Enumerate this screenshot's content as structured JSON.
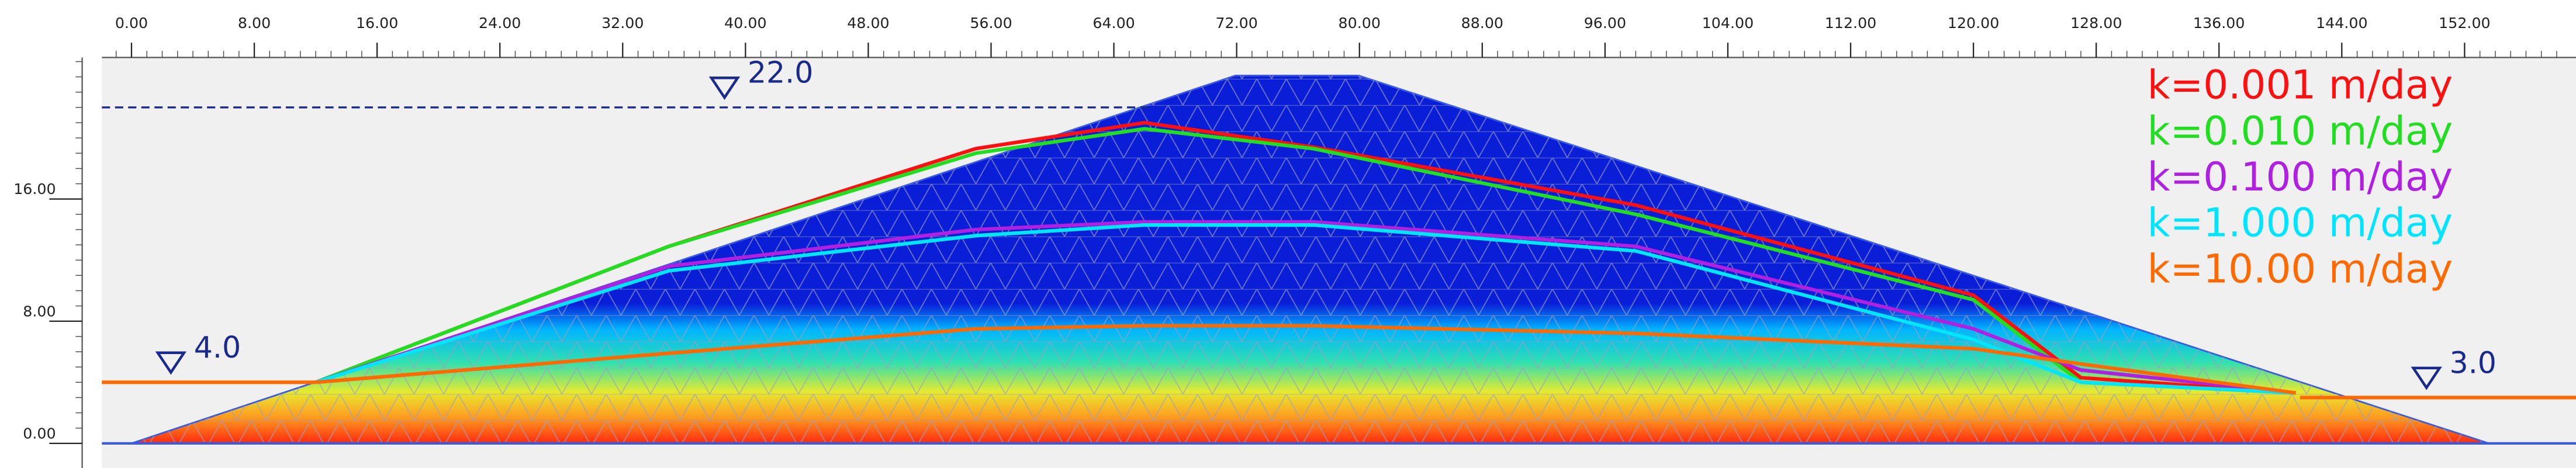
{
  "chart_data": {
    "type": "line",
    "x": [
      12,
      35,
      55,
      66,
      77,
      98,
      120,
      127,
      141
    ],
    "series": [
      {
        "name": "k=0.001 m/day",
        "color": "#ff1010",
        "values": [
          4.0,
          12.9,
          19.3,
          21.0,
          19.4,
          15.6,
          9.7,
          4.3,
          3.3
        ]
      },
      {
        "name": "k=0.010 m/day",
        "color": "#22dd22",
        "values": [
          4.0,
          12.9,
          19.0,
          20.6,
          19.3,
          15.0,
          9.4,
          4.0,
          3.3
        ]
      },
      {
        "name": "k=0.100 m/day",
        "color": "#b020e0",
        "values": [
          4.0,
          11.6,
          14.0,
          14.5,
          14.5,
          12.9,
          7.5,
          4.8,
          3.3
        ]
      },
      {
        "name": "k=1.000 m/day",
        "color": "#00e5ff",
        "values": [
          4.0,
          11.3,
          13.6,
          14.3,
          14.3,
          12.6,
          6.8,
          4.0,
          3.3
        ]
      },
      {
        "name": "k=10.00 m/day",
        "color": "#ff6a00",
        "values": [
          4.0,
          5.9,
          7.5,
          7.7,
          7.7,
          7.2,
          6.2,
          5.2,
          3.3
        ]
      }
    ],
    "water_levels": [
      {
        "value": 22,
        "label": "22.0"
      },
      {
        "value": 4,
        "label": "4.0"
      },
      {
        "value": 3,
        "label": "3.0"
      }
    ],
    "xlim": [
      -1.93,
      158.4
    ],
    "ylim": [
      0,
      25.27
    ],
    "xticks": [
      {
        "value": 0,
        "label": "0.00"
      },
      {
        "value": 8,
        "label": "8.00"
      },
      {
        "value": 16,
        "label": "16.00"
      },
      {
        "value": 24,
        "label": "24.00"
      },
      {
        "value": 32,
        "label": "32.00"
      },
      {
        "value": 40,
        "label": "40.00"
      },
      {
        "value": 48,
        "label": "48.00"
      },
      {
        "value": 56,
        "label": "56.00"
      },
      {
        "value": 64,
        "label": "64.00"
      },
      {
        "value": 72,
        "label": "72.00"
      },
      {
        "value": 80,
        "label": "80.00"
      },
      {
        "value": 88,
        "label": "88.00"
      },
      {
        "value": 96,
        "label": "96.00"
      },
      {
        "value": 104,
        "label": "104.00"
      },
      {
        "value": 112,
        "label": "112.00"
      },
      {
        "value": 120,
        "label": "120.00"
      },
      {
        "value": 128,
        "label": "128.00"
      },
      {
        "value": 136,
        "label": "136.00"
      },
      {
        "value": 144,
        "label": "144.00"
      },
      {
        "value": 152,
        "label": "152.00"
      }
    ],
    "yticks": [
      {
        "value": 0,
        "label": "0.00"
      },
      {
        "value": 8,
        "label": "8.00"
      },
      {
        "value": 16,
        "label": "16.00"
      }
    ]
  }
}
